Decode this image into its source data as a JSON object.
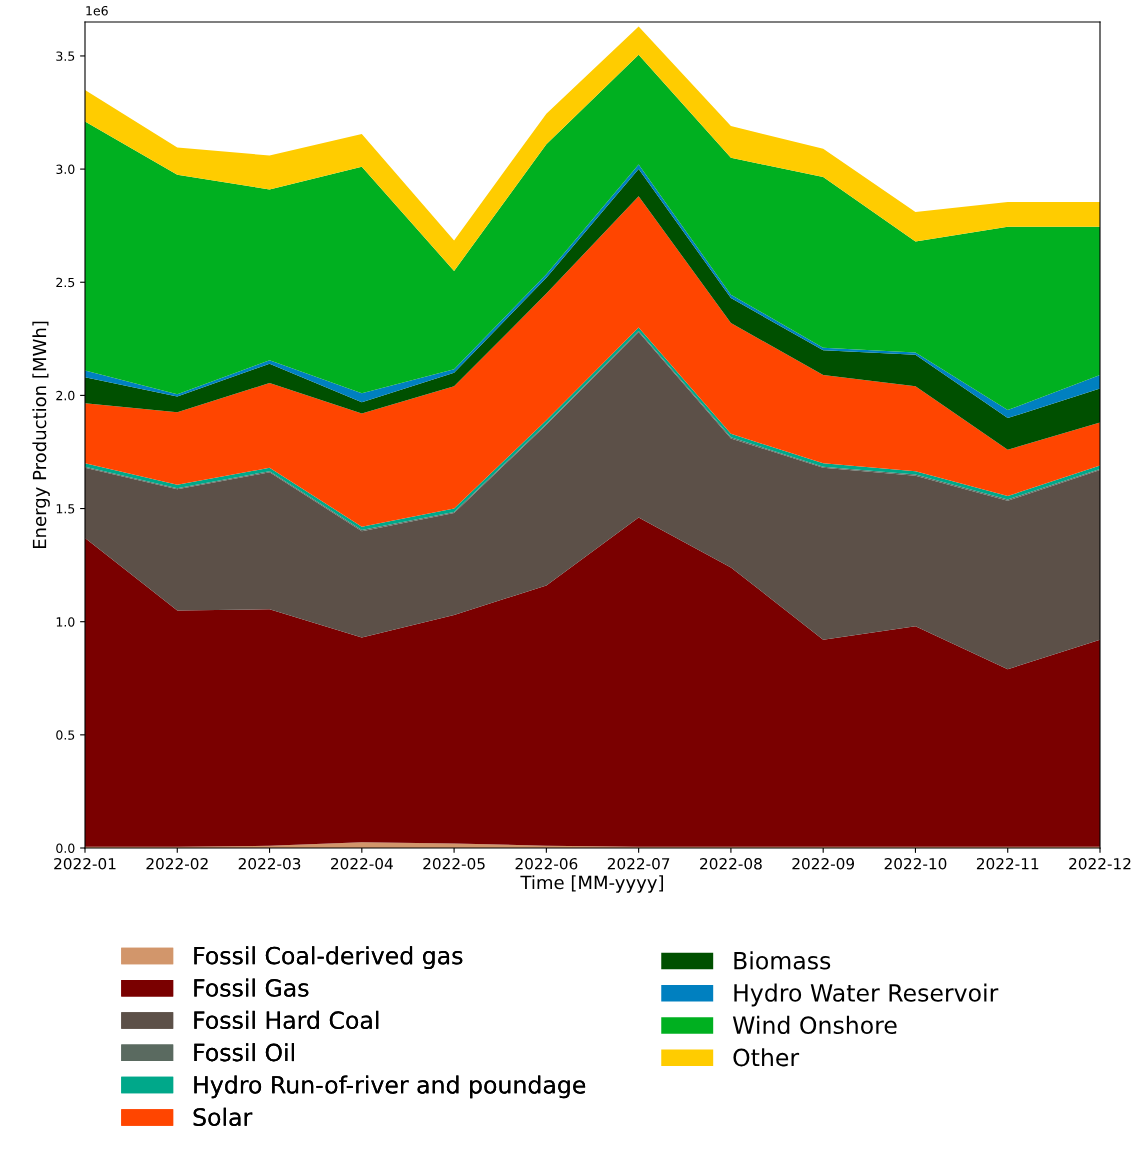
{
  "chart_data": {
    "type": "area",
    "stacked": true,
    "xlabel": "Time [MM-yyyy]",
    "ylabel": "Energy Production [MWh]",
    "categories": [
      "2022-01",
      "2022-02",
      "2022-03",
      "2022-04",
      "2022-05",
      "2022-06",
      "2022-07",
      "2022-08",
      "2022-09",
      "2022-10",
      "2022-11",
      "2022-12"
    ],
    "ylim": [
      0,
      3.65
    ],
    "yticks": [
      {
        "value": 0,
        "label": "0.0"
      },
      0.5,
      {
        "value": 1,
        "label": "1.0"
      },
      1.5,
      {
        "value": 2,
        "label": "2.0"
      },
      2.5,
      {
        "value": 3,
        "label": "3.0"
      },
      3.5
    ],
    "annotations": [
      "1e6"
    ],
    "legend": "bottom",
    "grid": false,
    "series": [
      {
        "name": "Fossil Coal-derived gas",
        "color": "#d2966b",
        "values": [
          0.005,
          0.005,
          0.01,
          0.025,
          0.02,
          0.01,
          0.005,
          0.005,
          0.005,
          0.005,
          0.005,
          0.005
        ]
      },
      {
        "name": "Fossil Gas",
        "color": "#7a0000",
        "values": [
          1.365,
          1.045,
          1.045,
          0.905,
          1.01,
          1.15,
          1.455,
          1.235,
          0.915,
          0.975,
          0.785,
          0.915
        ]
      },
      {
        "name": "Fossil Hard Coal",
        "color": "#5c5048",
        "values": [
          0.31,
          0.535,
          0.605,
          0.47,
          0.45,
          0.71,
          0.82,
          0.57,
          0.76,
          0.665,
          0.745,
          0.75
        ]
      },
      {
        "name": "Fossil Oil",
        "color": "#5a6a60",
        "values": [
          0.005,
          0.005,
          0.005,
          0.005,
          0.005,
          0.005,
          0.005,
          0.005,
          0.005,
          0.005,
          0.005,
          0.005
        ]
      },
      {
        "name": "Hydro Run-of-river and poundage",
        "color": "#00a88a",
        "values": [
          0.015,
          0.015,
          0.015,
          0.015,
          0.015,
          0.015,
          0.015,
          0.015,
          0.015,
          0.015,
          0.015,
          0.015
        ]
      },
      {
        "name": "Solar",
        "color": "#ff4500",
        "values": [
          0.265,
          0.32,
          0.375,
          0.5,
          0.54,
          0.56,
          0.58,
          0.49,
          0.39,
          0.375,
          0.205,
          0.19
        ]
      },
      {
        "name": "Biomass",
        "color": "#005000",
        "values": [
          0.115,
          0.07,
          0.085,
          0.05,
          0.06,
          0.07,
          0.12,
          0.11,
          0.11,
          0.14,
          0.14,
          0.15
        ]
      },
      {
        "name": "Hydro Water Reservoir",
        "color": "#0080c0",
        "values": [
          0.03,
          0.01,
          0.015,
          0.04,
          0.015,
          0.015,
          0.02,
          0.015,
          0.01,
          0.01,
          0.035,
          0.06
        ]
      },
      {
        "name": "Wind Onshore",
        "color": "#00b020",
        "values": [
          1.1,
          0.97,
          0.755,
          1.0,
          0.435,
          0.575,
          0.485,
          0.605,
          0.755,
          0.49,
          0.81,
          0.655
        ]
      },
      {
        "name": "Other",
        "color": "#ffcc00",
        "values": [
          0.14,
          0.12,
          0.15,
          0.145,
          0.135,
          0.135,
          0.125,
          0.14,
          0.125,
          0.13,
          0.11,
          0.11
        ]
      }
    ]
  }
}
